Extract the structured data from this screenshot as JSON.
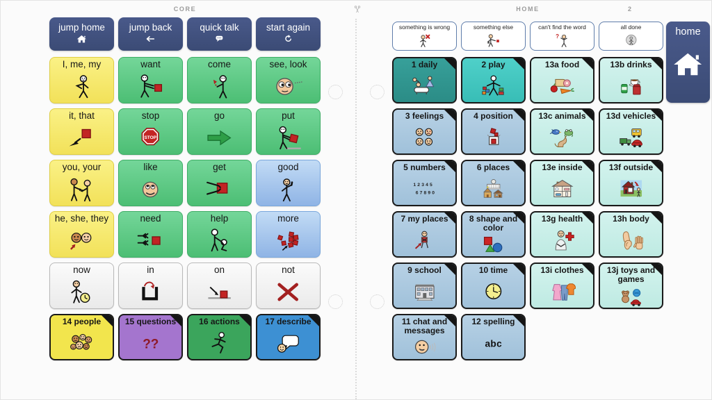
{
  "header": {
    "left_board_title": "CORE",
    "right_board_title": "HOME",
    "right_page_number": "2"
  },
  "left_board": {
    "nav": [
      {
        "label": "jump home",
        "icon": "home"
      },
      {
        "label": "jump back",
        "icon": "back-arrow"
      },
      {
        "label": "quick talk",
        "icon": "speech-bubble"
      },
      {
        "label": "start again",
        "icon": "restart"
      }
    ],
    "cells": [
      {
        "label": "I, me, my",
        "icon": "i-me-my",
        "kind": "yellow"
      },
      {
        "label": "want",
        "icon": "want",
        "kind": "green"
      },
      {
        "label": "come",
        "icon": "come",
        "kind": "green"
      },
      {
        "label": "see, look",
        "icon": "see-look",
        "kind": "green"
      },
      {
        "label": "it, that",
        "icon": "it-that",
        "kind": "yellow"
      },
      {
        "label": "stop",
        "icon": "stop-sign",
        "kind": "green"
      },
      {
        "label": "go",
        "icon": "go-arrow",
        "kind": "green"
      },
      {
        "label": "put",
        "icon": "put",
        "kind": "green"
      },
      {
        "label": "you, your",
        "icon": "you-your",
        "kind": "yellow"
      },
      {
        "label": "like",
        "icon": "like-face",
        "kind": "green"
      },
      {
        "label": "get",
        "icon": "get",
        "kind": "green"
      },
      {
        "label": "good",
        "icon": "good",
        "kind": "blue"
      },
      {
        "label": "he, she, they",
        "icon": "he-she-they",
        "kind": "yellow"
      },
      {
        "label": "need",
        "icon": "need",
        "kind": "green"
      },
      {
        "label": "help",
        "icon": "help",
        "kind": "green"
      },
      {
        "label": "more",
        "icon": "more",
        "kind": "blue"
      },
      {
        "label": "now",
        "icon": "now",
        "kind": "gray"
      },
      {
        "label": "in",
        "icon": "in",
        "kind": "gray"
      },
      {
        "label": "on",
        "icon": "on",
        "kind": "gray"
      },
      {
        "label": "not",
        "icon": "not",
        "kind": "gray"
      },
      {
        "label": "14 people",
        "icon": "people",
        "kind": "folder-yellow",
        "folder": true
      },
      {
        "label": "15 questions",
        "icon": "question-marks",
        "kind": "folder-purple",
        "folder": true
      },
      {
        "label": "16 actions",
        "icon": "running-person",
        "kind": "folder-green",
        "folder": true
      },
      {
        "label": "17 describe",
        "icon": "describe",
        "kind": "folder-blue",
        "folder": true
      }
    ]
  },
  "right_board": {
    "quick": [
      {
        "label": "something is wrong",
        "icon": "something-wrong"
      },
      {
        "label": "something else",
        "icon": "something-else"
      },
      {
        "label": "can't find the word",
        "icon": "cant-find-word"
      },
      {
        "label": "all done",
        "icon": "all-done"
      }
    ],
    "cells": [
      {
        "label": "1 daily",
        "icon": "daily",
        "kind": "teal-dark",
        "folder": true
      },
      {
        "label": "2 play",
        "icon": "play",
        "kind": "teal",
        "folder": true
      },
      {
        "label": "13a food",
        "icon": "food",
        "kind": "mint",
        "folder": true
      },
      {
        "label": "13b drinks",
        "icon": "drinks",
        "kind": "mint",
        "folder": true
      },
      {
        "label": "3 feelings",
        "icon": "feelings",
        "kind": "slate",
        "folder": true
      },
      {
        "label": "4 position",
        "icon": "position",
        "kind": "slate",
        "folder": true
      },
      {
        "label": "13c animals",
        "icon": "animals",
        "kind": "mint",
        "folder": true
      },
      {
        "label": "13d vehicles",
        "icon": "vehicles",
        "kind": "mint",
        "folder": true
      },
      {
        "label": "5 numbers",
        "icon": "numbers",
        "kind": "slate",
        "folder": true
      },
      {
        "label": "6 places",
        "icon": "places",
        "kind": "slate",
        "folder": true
      },
      {
        "label": "13e inside",
        "icon": "inside",
        "kind": "mint",
        "folder": true
      },
      {
        "label": "13f outside",
        "icon": "outside",
        "kind": "mint",
        "folder": true
      },
      {
        "label": "7 my places",
        "icon": "my-places",
        "kind": "slate",
        "folder": true
      },
      {
        "label": "8 shape and color",
        "icon": "shape-color",
        "kind": "slate",
        "folder": true
      },
      {
        "label": "13g health",
        "icon": "health",
        "kind": "mint",
        "folder": true
      },
      {
        "label": "13h body",
        "icon": "body-parts",
        "kind": "mint",
        "folder": true
      },
      {
        "label": "9 school",
        "icon": "school",
        "kind": "slate",
        "folder": true
      },
      {
        "label": "10 time",
        "icon": "clock",
        "kind": "slate",
        "folder": true
      },
      {
        "label": "13i clothes",
        "icon": "clothes",
        "kind": "mint",
        "folder": true
      },
      {
        "label": "13j toys and games",
        "icon": "toys",
        "kind": "mint",
        "folder": true
      },
      {
        "label": "11 chat and messages",
        "icon": "chat",
        "kind": "slate",
        "folder": true
      },
      {
        "label": "12 spelling",
        "icon": "spelling-abc",
        "kind": "slate",
        "folder": true
      }
    ]
  },
  "home_button": {
    "label": "home",
    "icon": "home"
  },
  "divider": {
    "icon": "scissors"
  },
  "colors": {
    "nav_blue": "#3E4E7A",
    "symbol_red": "#C22424",
    "folder_border": "#1A1A1A",
    "teal_dark": "#2E948E",
    "teal": "#3FC6BF",
    "mint": "#C7EFE9",
    "slate": "#ABC8DF",
    "yellow": "#F6E86A",
    "green": "#5BC87F",
    "blue": "#A7C6EC",
    "purple": "#A475CE"
  }
}
